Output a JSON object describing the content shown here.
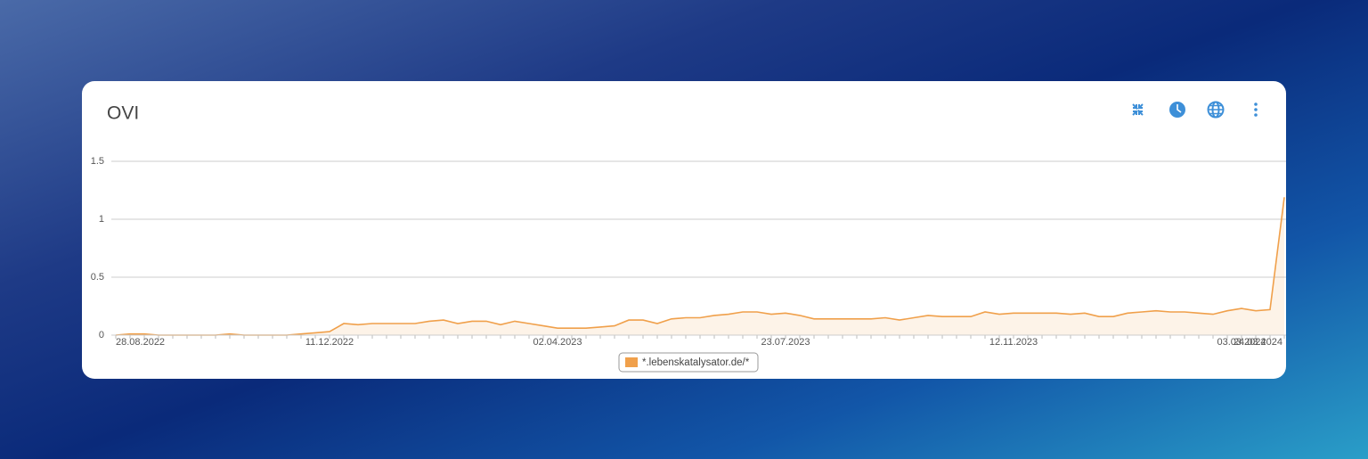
{
  "chart_data": {
    "type": "area",
    "title": "OVI",
    "categories": [
      "28.08.2022",
      null,
      null,
      null,
      null,
      null,
      null,
      null,
      null,
      null,
      null,
      null,
      null,
      null,
      null,
      "11.12.2022",
      null,
      null,
      null,
      null,
      null,
      null,
      null,
      null,
      null,
      null,
      null,
      null,
      null,
      null,
      null,
      "02.04.2023",
      null,
      null,
      null,
      null,
      null,
      null,
      null,
      null,
      null,
      null,
      null,
      null,
      null,
      null,
      null,
      "23.07.2023",
      null,
      null,
      null,
      null,
      null,
      null,
      null,
      null,
      null,
      null,
      null,
      null,
      null,
      null,
      null,
      "12.11.2023",
      null,
      null,
      null,
      null,
      null,
      null,
      null,
      null,
      null,
      null,
      null,
      null,
      null,
      null,
      null,
      "03.03.2024",
      null,
      null,
      "24.03.2024"
    ],
    "series": [
      {
        "name": "*.lebenskatalysator.de/*",
        "color": "#f0a04b",
        "values": [
          0.0,
          0.01,
          0.01,
          0.0,
          0.0,
          0.0,
          0.0,
          0.0,
          0.01,
          0.0,
          0.0,
          0.0,
          0.0,
          0.01,
          0.02,
          0.03,
          0.1,
          0.09,
          0.1,
          0.1,
          0.1,
          0.1,
          0.12,
          0.13,
          0.1,
          0.12,
          0.12,
          0.09,
          0.12,
          0.1,
          0.08,
          0.06,
          0.06,
          0.06,
          0.07,
          0.08,
          0.13,
          0.13,
          0.1,
          0.14,
          0.15,
          0.15,
          0.17,
          0.18,
          0.2,
          0.2,
          0.18,
          0.19,
          0.17,
          0.14,
          0.14,
          0.14,
          0.14,
          0.14,
          0.15,
          0.13,
          0.15,
          0.17,
          0.16,
          0.16,
          0.16,
          0.2,
          0.18,
          0.19,
          0.19,
          0.19,
          0.19,
          0.18,
          0.19,
          0.16,
          0.16,
          0.19,
          0.2,
          0.21,
          0.2,
          0.2,
          0.19,
          0.18,
          0.21,
          0.23,
          0.21,
          0.22,
          1.19
        ]
      }
    ],
    "ylim": [
      0,
      1.5
    ],
    "yticks": [
      0,
      0.5,
      1,
      1.5
    ],
    "grid": true
  }
}
